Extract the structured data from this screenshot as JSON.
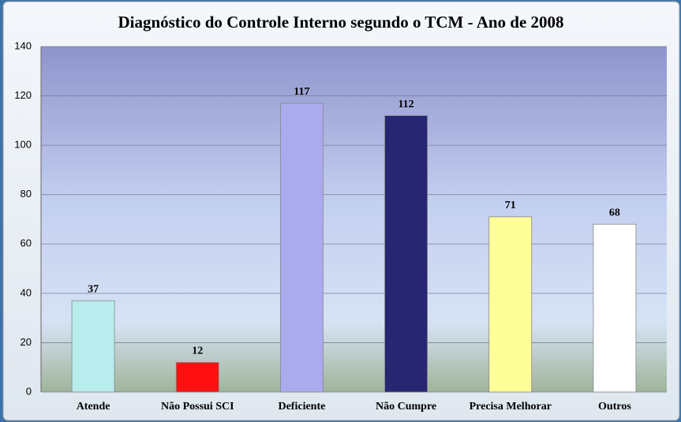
{
  "chart_data": {
    "type": "bar",
    "title": "Diagnóstico do Controle Interno segundo o TCM - Ano de 2008",
    "categories": [
      "Atende",
      "Não Possui SCI",
      "Deficiente",
      "Não Cumpre",
      "Precisa Melhorar",
      "Outros"
    ],
    "values": [
      37,
      12,
      117,
      112,
      71,
      68
    ],
    "colors": [
      "#b9ecec",
      "#ff1010",
      "#aaaaee",
      "#262673",
      "#ffff99",
      "#ffffff"
    ],
    "ylim": [
      0,
      140
    ],
    "yticks": [
      0,
      20,
      40,
      60,
      80,
      100,
      120,
      140
    ],
    "grid": true
  }
}
